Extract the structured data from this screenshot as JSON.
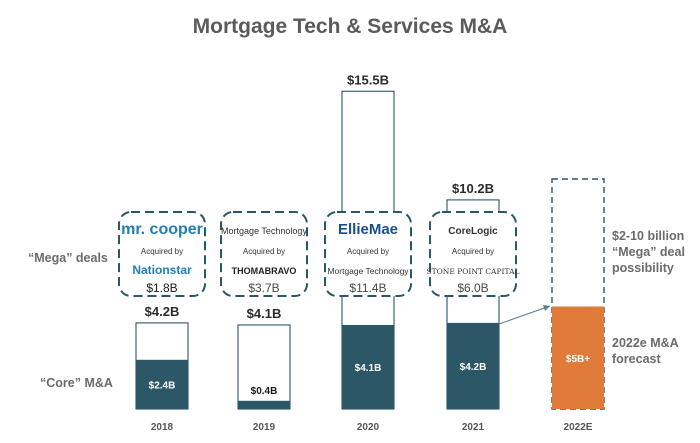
{
  "title": "Mortgage Tech & Services M&A",
  "colors": {
    "core": "#2c5766",
    "forecast": "#e07b39",
    "outline": "#2c5766",
    "deal_border": "#2c5766"
  },
  "left_labels": {
    "mega": "“Mega” deals",
    "core": "“Core” M&A"
  },
  "right_labels": {
    "mega_line1": "$2-10 billion",
    "mega_line2": "“Mega” deal",
    "mega_line3": "possibility",
    "forecast_line1": "2022e M&A",
    "forecast_line2": "forecast"
  },
  "deals": [
    {
      "target": "mr. cooper",
      "acquired_by": "Acquired by",
      "acquirer": "Nationstar",
      "value": "$1.8B"
    },
    {
      "target": "Mortgage Technology",
      "acquired_by": "Acquired by",
      "acquirer": "THOMABRAVO",
      "value": "$3.7B"
    },
    {
      "target": "EllieMae",
      "acquired_by": "Acquired by",
      "acquirer": "Mortgage Technology",
      "value": "$11.4B"
    },
    {
      "target": "CoreLogic",
      "acquired_by": "Acquired by",
      "acquirer": "STONE POINT CAPITAL",
      "value": "$6.0B"
    }
  ],
  "chart_data": {
    "type": "bar",
    "categories": [
      "2018",
      "2019",
      "2020",
      "2021",
      "2022E"
    ],
    "series": [
      {
        "values": [
          2.4,
          0.4,
          4.1,
          4.2,
          5
        ]
      },
      {
        "values": [
          1.8,
          3.7,
          11.4,
          6.0,
          null
        ]
      }
    ],
    "totals": [
      4.2,
      4.1,
      15.5,
      10.2,
      null
    ],
    "total_labels": [
      "$4.2B",
      "$4.1B",
      "$15.5B",
      "$10.2B",
      ""
    ],
    "core_labels": [
      "$2.4B",
      "$0.4B",
      "$4.1B",
      "$4.2B",
      "$5B+"
    ],
    "mega_range_2022": [
      2,
      10
    ],
    "forecast_category": "2022E",
    "ylim": [
      0,
      15.5
    ]
  }
}
